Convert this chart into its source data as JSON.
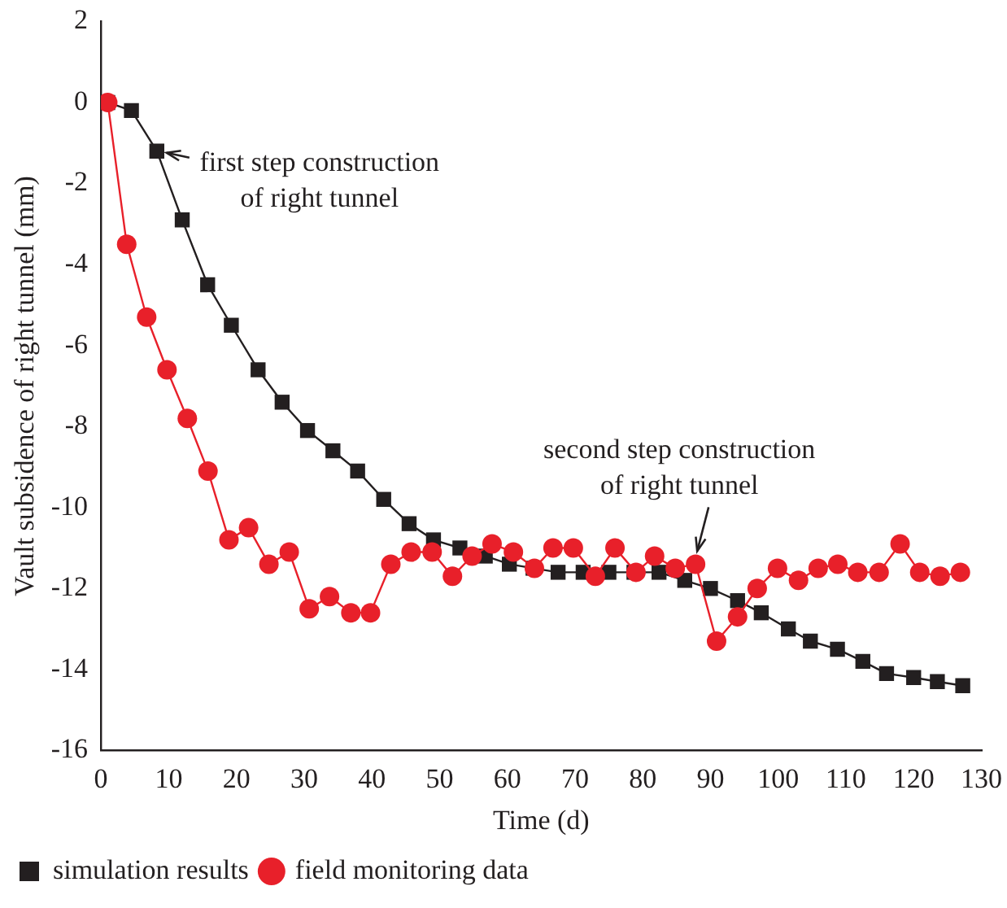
{
  "chart_data": {
    "type": "line",
    "xlabel": "Time (d)",
    "ylabel": "Vault subsidence of right tunnel (mm)",
    "xlim": [
      0,
      130
    ],
    "xticks": [
      0,
      10,
      20,
      30,
      40,
      50,
      60,
      70,
      80,
      90,
      100,
      110,
      120,
      130
    ],
    "ylim": [
      -16,
      2
    ],
    "yticks": [
      -16,
      -14,
      -12,
      -10,
      -8,
      -6,
      -4,
      -2,
      0,
      2
    ],
    "grid": false,
    "legend": "bottom left",
    "line_style": "solid",
    "series": [
      {
        "name": "simulation results",
        "color": "#231f20",
        "marker": "square",
        "x": [
          1,
          4.5,
          8.25,
          12,
          15.75,
          19.25,
          23.2,
          26.75,
          30.5,
          34.25,
          37.9,
          41.75,
          45.5,
          49.1,
          53,
          56.75,
          60.3,
          63.8,
          67.5,
          71.2,
          75,
          78.7,
          82.4,
          86.2,
          90,
          94,
          97.5,
          101.5,
          104.75,
          108.75,
          112.5,
          116,
          120,
          123.5,
          127.25
        ],
        "values": [
          0,
          -0.2,
          -1.2,
          -2.9,
          -4.5,
          -5.5,
          -6.6,
          -7.4,
          -8.1,
          -8.6,
          -9.1,
          -9.8,
          -10.4,
          -10.8,
          -11,
          -11.2,
          -11.4,
          -11.5,
          -11.6,
          -11.6,
          -11.6,
          -11.6,
          -11.6,
          -11.8,
          -12,
          -12.3,
          -12.6,
          -13,
          -13.3,
          -13.5,
          -13.8,
          -14.1,
          -14.2,
          -14.3,
          -14.4
        ]
      },
      {
        "name": "field monitoring data",
        "color": "#e8202a",
        "marker": "circle",
        "x": [
          1,
          3.8,
          6.75,
          9.75,
          12.75,
          15.8,
          18.9,
          21.8,
          24.8,
          27.8,
          30.75,
          33.75,
          36.9,
          39.8,
          42.8,
          45.8,
          48.9,
          51.9,
          54.8,
          57.75,
          60.9,
          64,
          66.75,
          69.75,
          73,
          75.9,
          79,
          81.75,
          84.8,
          87.8,
          90.9,
          94,
          96.9,
          99.9,
          103,
          105.9,
          108.8,
          111.75,
          114.9,
          118,
          120.9,
          123.9,
          126.9
        ],
        "values": [
          0,
          -3.5,
          -5.3,
          -6.6,
          -7.8,
          -9.1,
          -10.8,
          -10.5,
          -11.4,
          -11.1,
          -12.5,
          -12.2,
          -12.6,
          -12.6,
          -11.4,
          -11.1,
          -11.1,
          -11.7,
          -11.2,
          -10.9,
          -11.1,
          -11.5,
          -11,
          -11,
          -11.7,
          -11,
          -11.6,
          -11.2,
          -11.5,
          -11.4,
          -13.3,
          -12.7,
          -12,
          -11.5,
          -11.8,
          -11.5,
          -11.4,
          -11.6,
          -11.6,
          -10.9,
          -11.6,
          -11.7,
          -11.6
        ]
      }
    ],
    "annotations": [
      {
        "text": "first step construction\nof right tunnel",
        "x": 8.25,
        "y": -1.2
      },
      {
        "text": "second step construction\nof right tunnel",
        "x": 87.8,
        "y": -11.4
      }
    ]
  }
}
